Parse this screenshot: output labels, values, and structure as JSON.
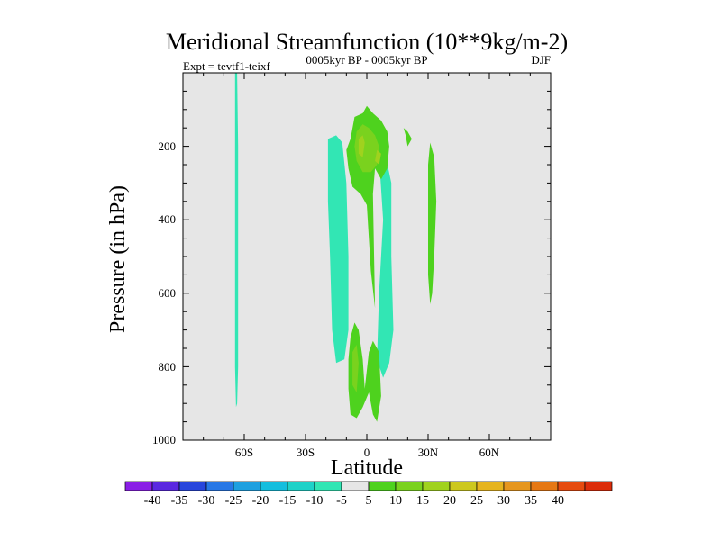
{
  "chart_data": {
    "type": "contour",
    "title": "Meridional Streamfunction (10**9kg/m-2)",
    "subtitle_left": "Expt = tevtf1-teixf",
    "subtitle_center": "0005kyr BP - 0005kyr BP",
    "subtitle_right": "DJF",
    "xlabel": "Latitude",
    "ylabel": "Pressure (in hPa)",
    "xlim": [
      -90,
      90
    ],
    "ylim": [
      0,
      1000
    ],
    "y_inverted": true,
    "xticks": [
      {
        "value": -60,
        "label": "60S"
      },
      {
        "value": -30,
        "label": "30S"
      },
      {
        "value": 0,
        "label": "0"
      },
      {
        "value": 30,
        "label": "30N"
      },
      {
        "value": 60,
        "label": "60N"
      }
    ],
    "yticks": [
      {
        "value": 200,
        "label": "200"
      },
      {
        "value": 400,
        "label": "400"
      },
      {
        "value": 600,
        "label": "600"
      },
      {
        "value": 800,
        "label": "800"
      },
      {
        "value": 1000,
        "label": "1000"
      }
    ],
    "background_color": "#e6e6e6",
    "colorbar": {
      "labels": [
        "-40",
        "-35",
        "-30",
        "-25",
        "-20",
        "-15",
        "-10",
        "-5",
        "5",
        "10",
        "15",
        "20",
        "25",
        "30",
        "35",
        "40"
      ],
      "colors": [
        "#8a1ee6",
        "#5a28e0",
        "#2846dc",
        "#2878e6",
        "#1ea0e0",
        "#14bede",
        "#1ed2c8",
        "#32e6b4",
        "#e6e6e6",
        "#4ed21e",
        "#7ad21e",
        "#a0d21e",
        "#cdc81e",
        "#e6b41e",
        "#e6961e",
        "#e67814",
        "#e64b0f",
        "#dc2d0a"
      ]
    },
    "regions": [
      {
        "name": "band-70s",
        "level": -5,
        "points": [
          [
            -64.5,
            0
          ],
          [
            -63.5,
            0
          ],
          [
            -63,
            200
          ],
          [
            -63,
            500
          ],
          [
            -63,
            800
          ],
          [
            -63.5,
            900
          ],
          [
            -64,
            910
          ],
          [
            -64.5,
            800
          ],
          [
            -64.5,
            400
          ]
        ]
      },
      {
        "name": "cell-sh-upper-left",
        "level": -5,
        "points": [
          [
            -19,
            180
          ],
          [
            -15,
            170
          ],
          [
            -12,
            190
          ],
          [
            -10,
            300
          ],
          [
            -9,
            500
          ],
          [
            -9,
            700
          ],
          [
            -11,
            780
          ],
          [
            -15,
            790
          ],
          [
            -17,
            700
          ],
          [
            -18,
            500
          ],
          [
            -19,
            350
          ]
        ]
      },
      {
        "name": "cell-sh-right",
        "level": -5,
        "points": [
          [
            6,
            230
          ],
          [
            9,
            220
          ],
          [
            12,
            300
          ],
          [
            12,
            500
          ],
          [
            13,
            700
          ],
          [
            11,
            790
          ],
          [
            8,
            830
          ],
          [
            5,
            780
          ],
          [
            6,
            600
          ],
          [
            8,
            400
          ]
        ]
      },
      {
        "name": "cell-upper-positive",
        "level": 5,
        "points": [
          [
            -8,
            180
          ],
          [
            -6,
            120
          ],
          [
            -2,
            110
          ],
          [
            0,
            90
          ],
          [
            3,
            110
          ],
          [
            7,
            130
          ],
          [
            10,
            160
          ],
          [
            11,
            200
          ],
          [
            10,
            260
          ],
          [
            7,
            290
          ],
          [
            4,
            260
          ],
          [
            3,
            330
          ],
          [
            4,
            640
          ],
          [
            2,
            540
          ],
          [
            0,
            360
          ],
          [
            -3,
            330
          ],
          [
            -7,
            310
          ],
          [
            -9,
            260
          ],
          [
            -10,
            210
          ]
        ]
      },
      {
        "name": "cell-upper-positive-10",
        "level": 10,
        "points": [
          [
            -5,
            160
          ],
          [
            -2,
            140
          ],
          [
            1,
            150
          ],
          [
            4,
            170
          ],
          [
            6,
            200
          ],
          [
            5,
            250
          ],
          [
            2,
            270
          ],
          [
            -2,
            270
          ],
          [
            -5,
            240
          ],
          [
            -6,
            200
          ]
        ]
      },
      {
        "name": "cell-upper-positive-15",
        "level": 15,
        "points": [
          [
            -4,
            180
          ],
          [
            -2,
            170
          ],
          [
            -1,
            190
          ],
          [
            -2,
            230
          ],
          [
            -4,
            220
          ]
        ]
      },
      {
        "name": "cell-upper-positive-15b",
        "level": 15,
        "points": [
          [
            5,
            210
          ],
          [
            7,
            220
          ],
          [
            6,
            250
          ],
          [
            4,
            240
          ]
        ]
      },
      {
        "name": "cell-nh-20n",
        "level": 5,
        "points": [
          [
            18,
            150
          ],
          [
            20,
            160
          ],
          [
            22,
            180
          ],
          [
            20,
            200
          ],
          [
            19,
            170
          ]
        ]
      },
      {
        "name": "cell-nh-30n",
        "level": 5,
        "points": [
          [
            31,
            190
          ],
          [
            33,
            230
          ],
          [
            34,
            350
          ],
          [
            33,
            500
          ],
          [
            32,
            600
          ],
          [
            31,
            630
          ],
          [
            30,
            550
          ],
          [
            30,
            380
          ],
          [
            30,
            250
          ]
        ]
      },
      {
        "name": "cell-lower-positive",
        "level": 5,
        "points": [
          [
            -8,
            720
          ],
          [
            -6,
            680
          ],
          [
            -4,
            700
          ],
          [
            -2,
            780
          ],
          [
            -1,
            860
          ],
          [
            1,
            760
          ],
          [
            3,
            730
          ],
          [
            6,
            760
          ],
          [
            7,
            880
          ],
          [
            5,
            950
          ],
          [
            3,
            930
          ],
          [
            1,
            870
          ],
          [
            -2,
            910
          ],
          [
            -5,
            940
          ],
          [
            -8,
            930
          ],
          [
            -9,
            860
          ],
          [
            -9,
            780
          ]
        ]
      },
      {
        "name": "cell-lower-positive-10",
        "level": 10,
        "points": [
          [
            -7,
            760
          ],
          [
            -5,
            740
          ],
          [
            -4,
            790
          ],
          [
            -5,
            870
          ],
          [
            -7,
            850
          ]
        ]
      }
    ]
  }
}
